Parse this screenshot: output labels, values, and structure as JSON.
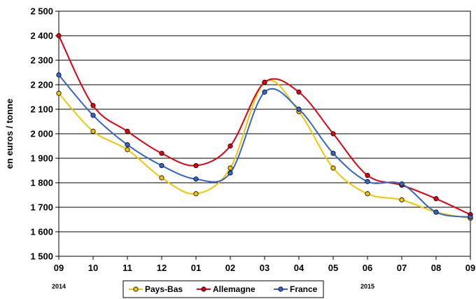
{
  "chart_data": {
    "type": "line",
    "title": "",
    "ylabel": "en euros / tonne",
    "xlabel": "",
    "ylim": [
      1500,
      2500
    ],
    "yticks": [
      1500,
      1600,
      1700,
      1800,
      1900,
      2000,
      2100,
      2200,
      2300,
      2400,
      2500
    ],
    "ytick_labels": [
      "1 500",
      "1 600",
      "1 700",
      "1 800",
      "1 900",
      "2 000",
      "2 100",
      "2 200",
      "2 300",
      "2 400",
      "2 500"
    ],
    "categories": [
      "09",
      "10",
      "11",
      "12",
      "01",
      "02",
      "03",
      "04",
      "05",
      "06",
      "07",
      "08",
      "09"
    ],
    "year_labels": [
      {
        "text": "2014",
        "at_category": 0
      },
      {
        "text": "2015",
        "at_category": 9
      }
    ],
    "grid": true,
    "legend_position": "bottom",
    "series": [
      {
        "name": "Pays-Bas",
        "color": "#F5C400",
        "values": [
          2165,
          2010,
          1935,
          1820,
          1755,
          1860,
          2210,
          2090,
          1860,
          1755,
          1730,
          1680,
          1655
        ]
      },
      {
        "name": "Allemagne",
        "color": "#E3000F",
        "values": [
          2400,
          2115,
          2010,
          1920,
          1870,
          1950,
          2210,
          2170,
          2000,
          1830,
          1790,
          1735,
          1670
        ]
      },
      {
        "name": "France",
        "color": "#3366CC",
        "values": [
          2240,
          2075,
          1955,
          1870,
          1815,
          1840,
          2170,
          2100,
          1920,
          1805,
          1795,
          1680,
          1660
        ]
      }
    ]
  }
}
